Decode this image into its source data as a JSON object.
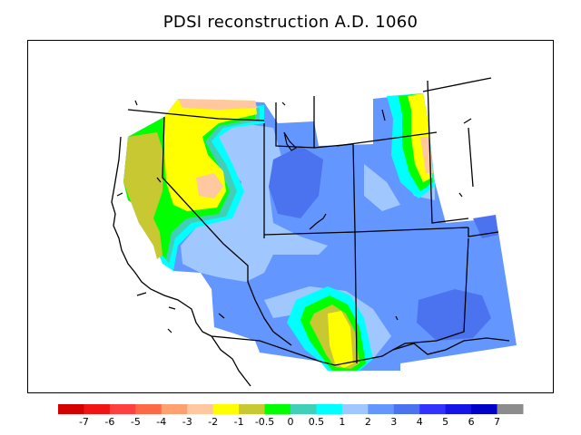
{
  "title": "PDSI reconstruction A.D. 1060",
  "map": {
    "region": "Southwestern United States",
    "variable": "PDSI"
  },
  "legend": {
    "bins": [
      {
        "color": "#d40000"
      },
      {
        "color": "#f01414"
      },
      {
        "color": "#ff4040"
      },
      {
        "color": "#ff6a46"
      },
      {
        "color": "#ffa070"
      },
      {
        "color": "#ffc8a0"
      },
      {
        "color": "#ffff00"
      },
      {
        "color": "#c8c832"
      },
      {
        "color": "#00ff00"
      },
      {
        "color": "#40d0b8"
      },
      {
        "color": "#00ffff"
      },
      {
        "color": "#a0c8ff"
      },
      {
        "color": "#6496ff"
      },
      {
        "color": "#4b73f0"
      },
      {
        "color": "#3232ff"
      },
      {
        "color": "#1414e6"
      },
      {
        "color": "#0000c8"
      },
      {
        "color": "#8c8c8c"
      }
    ],
    "tick_labels": [
      "-7",
      "-6",
      "-5",
      "-4",
      "-3",
      "-2",
      "-1",
      "-0.5",
      "0",
      "0.5",
      "1",
      "2",
      "3",
      "4",
      "5",
      "6",
      "7"
    ]
  }
}
